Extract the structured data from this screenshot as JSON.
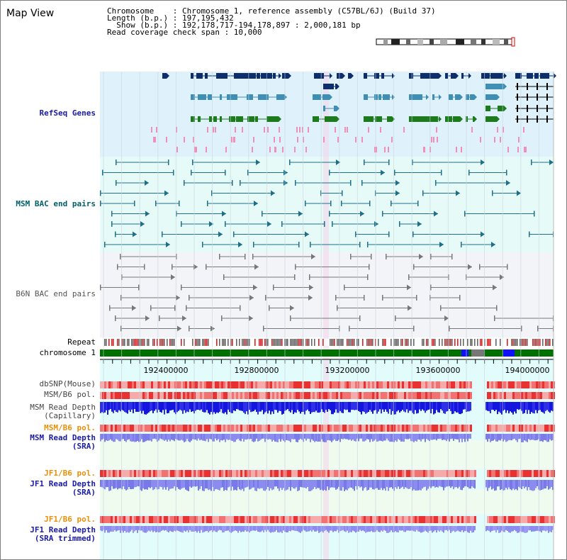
{
  "page": {
    "title": "Map View"
  },
  "info": {
    "line1": "Chromosome    : Chromosome 1, reference assembly (C57BL/6J) (Build 37)",
    "line2": "Length (b.p.) : 197,195,432",
    "line3": "  Show (b.p.) : 192,178,717-194,178,897 : 2,000,181 bp",
    "line4": "Read coverage check span : 10,000"
  },
  "tracks": {
    "refseq": "RefSeq Genes",
    "msm_bac": "MSM BAC end pairs",
    "b6n_bac": "B6N BAC end pairs",
    "repeat": "Repeat",
    "chromosome": "chromosome 1",
    "dbsnp": "dbSNP(Mouse)",
    "msm_b6_pol1": "MSM/B6 pol.",
    "msm_read_cap": "MSM Read Depth\n(Capillary)",
    "msm_b6_pol2": "MSM/B6 pol.",
    "msm_read_sra": "MSM Read Depth\n(SRA)",
    "jf1_b6_pol1": "JF1/B6 pol.",
    "jf1_read_sra": "JF1 Read Depth\n(SRA)",
    "jf1_b6_pol2": "JF1/B6 pol.",
    "jf1_read_trim": "JF1 Read Depth\n(SRA trimmed)"
  },
  "axis": {
    "ticks": [
      "192400000",
      "192800000",
      "193200000",
      "193600000",
      "194000000"
    ]
  },
  "colors": {
    "refseq_bg": "#dff2fb",
    "msm_bg": "#e6fbf8",
    "b6n_bg": "#f3f4f8",
    "gene_navy": "#0d2d6b",
    "gene_steel": "#3f8fb5",
    "gene_green": "#1d7a1d",
    "bac_teal": "#1e6f8a",
    "bac_gray": "#777777",
    "chrom_green": "#007000",
    "depth_blue": "#1515e0",
    "depth_light": "#8c8cf0",
    "pol_red": "#f05050"
  }
}
